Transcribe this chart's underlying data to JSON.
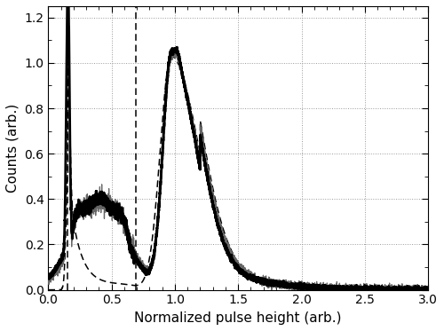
{
  "xlabel": "Normalized pulse height (arb.)",
  "ylabel": "Counts (arb.)",
  "xlim": [
    0.0,
    3.0
  ],
  "ylim": [
    0.0,
    1.25
  ],
  "xticks": [
    0.0,
    0.5,
    1.0,
    1.5,
    2.0,
    2.5,
    3.0
  ],
  "yticks": [
    0.0,
    0.2,
    0.4,
    0.6,
    0.8,
    1.0,
    1.2
  ],
  "vline1": 0.155,
  "vline2": 0.695,
  "thick_line_color": "#000000",
  "thin_line_color": "#666666",
  "dashed_line_color": "#000000",
  "background_color": "#ffffff",
  "grid_color": "#999999",
  "figsize": [
    5.0,
    3.73
  ],
  "dpi": 100
}
